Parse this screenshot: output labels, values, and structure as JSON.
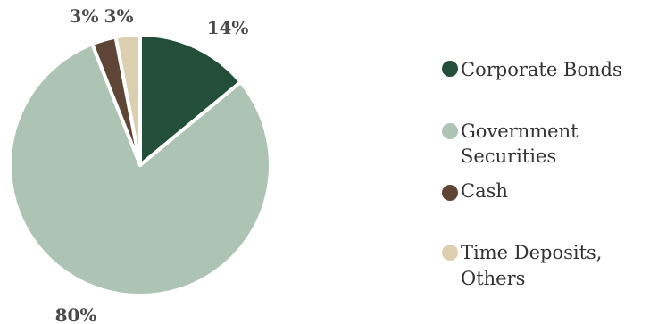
{
  "chart_data": {
    "type": "pie",
    "series": [
      {
        "name": "Corporate Bonds",
        "value": 14,
        "label": "14%",
        "color": "#234e3a"
      },
      {
        "name": "Government Securities",
        "value": 80,
        "label": "80%",
        "color": "#adc3b3"
      },
      {
        "name": "Cash",
        "value": 3,
        "label": "3%",
        "color": "#5e4535"
      },
      {
        "name": "Time Deposits, Others",
        "value": 3,
        "label": "3%",
        "color": "#dccfb0"
      }
    ],
    "legend": {
      "placement": "right",
      "entries": [
        {
          "lines": [
            "Corporate Bonds"
          ]
        },
        {
          "lines": [
            "Government",
            "Securities"
          ]
        },
        {
          "lines": [
            "Cash"
          ]
        },
        {
          "lines": [
            "Time Deposits,",
            "Others"
          ]
        }
      ]
    }
  }
}
